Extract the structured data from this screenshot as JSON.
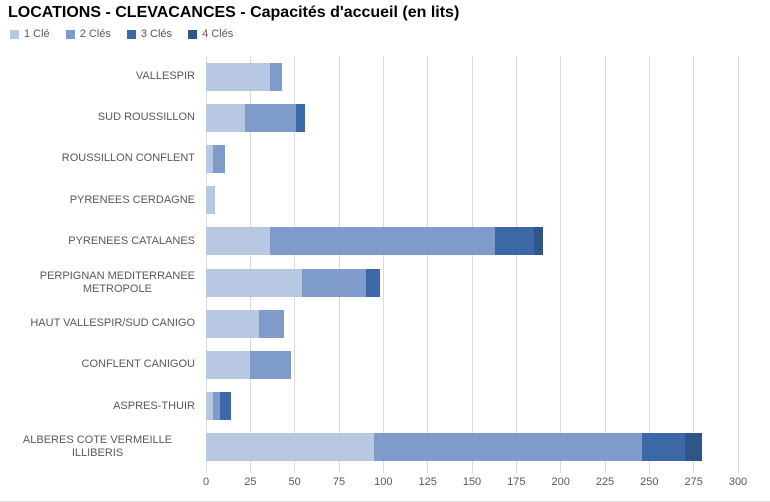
{
  "title": "LOCATIONS - CLEVACANCES - Capacités d'accueil (en lits)",
  "colors": {
    "title_text": "#000000",
    "axis_text": "#595959",
    "gridline": "#d9d9d9",
    "background": "#ffffff"
  },
  "chart_data": {
    "type": "bar",
    "orientation": "horizontal",
    "stacked": true,
    "title": "LOCATIONS - CLEVACANCES - Capacités d'accueil (en lits)",
    "legend_position": "top-left",
    "grid": "vertical",
    "xlabel": "",
    "ylabel": "",
    "xlim": [
      0,
      300
    ],
    "xticks": [
      0,
      25,
      50,
      75,
      100,
      125,
      150,
      175,
      200,
      225,
      250,
      275,
      300
    ],
    "categories": [
      "VALLESPIR",
      "SUD ROUSSILLON",
      "ROUSSILLON CONFLENT",
      "PYRENEES CERDAGNE",
      "PYRENEES CATALANES",
      "PERPIGNAN MEDITERRANEE\nMETROPOLE",
      "HAUT VALLESPIR/SUD CANIGO",
      "CONFLENT CANIGOU",
      "ASPRES-THUIR",
      "ALBERES COTE VERMEILLE ILLIBERIS"
    ],
    "series": [
      {
        "name": "1 Clé",
        "color": "#b8c7e2",
        "values": [
          36,
          22,
          4,
          5,
          36,
          54,
          30,
          25,
          4,
          95
        ]
      },
      {
        "name": "2 Clés",
        "color": "#7f9bc9",
        "values": [
          7,
          29,
          7,
          0,
          127,
          36,
          14,
          23,
          4,
          151
        ]
      },
      {
        "name": "3 Clés",
        "color": "#3c68a8",
        "values": [
          0,
          5,
          0,
          0,
          22,
          8,
          0,
          0,
          6,
          24
        ]
      },
      {
        "name": "4 Clés",
        "color": "#2e5688",
        "values": [
          0,
          0,
          0,
          0,
          5,
          0,
          0,
          0,
          0,
          10
        ]
      }
    ],
    "totals": [
      43,
      56,
      11,
      5,
      190,
      98,
      44,
      48,
      14,
      280
    ]
  }
}
